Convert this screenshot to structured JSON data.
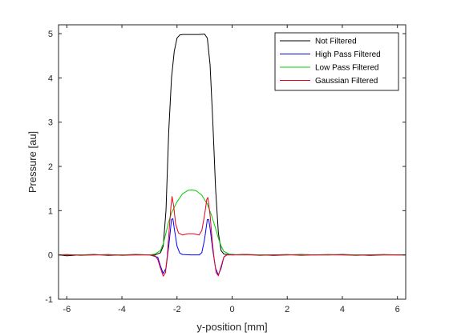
{
  "chart_data": {
    "type": "line",
    "title": "",
    "xlabel": "y-position [mm]",
    "ylabel": "Pressure [au]",
    "xlim": [
      -6.3,
      6.3
    ],
    "ylim": [
      -1,
      5.2
    ],
    "xticks": [
      -6,
      -4,
      -2,
      0,
      2,
      4,
      6
    ],
    "yticks": [
      -1,
      0,
      1,
      2,
      3,
      4,
      5
    ],
    "grid": false,
    "legend_position": "top-right",
    "series": [
      {
        "name": "Not Filtered",
        "color": "#000000",
        "points": [
          [
            -6.3,
            0
          ],
          [
            -6,
            -0.02
          ],
          [
            -5.5,
            0
          ],
          [
            -5,
            0.01
          ],
          [
            -4.5,
            -0.01
          ],
          [
            -4,
            0
          ],
          [
            -3.5,
            0.01
          ],
          [
            -3,
            0
          ],
          [
            -2.8,
            0
          ],
          [
            -2.6,
            0.05
          ],
          [
            -2.5,
            0.2
          ],
          [
            -2.4,
            1.0
          ],
          [
            -2.3,
            2.8
          ],
          [
            -2.2,
            4.0
          ],
          [
            -2.1,
            4.6
          ],
          [
            -2.0,
            4.9
          ],
          [
            -1.9,
            4.97
          ],
          [
            -1.8,
            4.98
          ],
          [
            -1.5,
            4.98
          ],
          [
            -1.2,
            4.98
          ],
          [
            -1.0,
            4.99
          ],
          [
            -0.9,
            4.9
          ],
          [
            -0.8,
            4.3
          ],
          [
            -0.7,
            3.0
          ],
          [
            -0.6,
            1.5
          ],
          [
            -0.5,
            0.5
          ],
          [
            -0.4,
            0.1
          ],
          [
            -0.3,
            0.02
          ],
          [
            0,
            0
          ],
          [
            0.5,
            0.01
          ],
          [
            1,
            0
          ],
          [
            1.5,
            -0.01
          ],
          [
            2,
            0
          ],
          [
            2.5,
            0.01
          ],
          [
            3,
            0
          ],
          [
            3.5,
            0
          ],
          [
            4,
            0.01
          ],
          [
            4.5,
            0
          ],
          [
            5,
            -0.01
          ],
          [
            5.5,
            0
          ],
          [
            6,
            0
          ],
          [
            6.3,
            0
          ]
        ]
      },
      {
        "name": "High Pass Filtered",
        "color": "#0000ff",
        "points": [
          [
            -6.3,
            0
          ],
          [
            -5.5,
            0
          ],
          [
            -4.5,
            0
          ],
          [
            -3.5,
            0
          ],
          [
            -3,
            0
          ],
          [
            -2.7,
            -0.05
          ],
          [
            -2.6,
            -0.25
          ],
          [
            -2.5,
            -0.42
          ],
          [
            -2.4,
            -0.3
          ],
          [
            -2.3,
            0.2
          ],
          [
            -2.2,
            0.8
          ],
          [
            -2.15,
            0.82
          ],
          [
            -2.1,
            0.6
          ],
          [
            -2.0,
            0.2
          ],
          [
            -1.9,
            0.04
          ],
          [
            -1.8,
            0.01
          ],
          [
            -1.5,
            0
          ],
          [
            -1.2,
            0
          ],
          [
            -1.1,
            0.05
          ],
          [
            -1.0,
            0.35
          ],
          [
            -0.9,
            0.8
          ],
          [
            -0.85,
            0.8
          ],
          [
            -0.8,
            0.6
          ],
          [
            -0.7,
            0.1
          ],
          [
            -0.6,
            -0.3
          ],
          [
            -0.5,
            -0.45
          ],
          [
            -0.4,
            -0.3
          ],
          [
            -0.3,
            -0.05
          ],
          [
            -0.2,
            0
          ],
          [
            0.5,
            0
          ],
          [
            1.5,
            0
          ],
          [
            2.5,
            0
          ],
          [
            3.5,
            0
          ],
          [
            4.5,
            0
          ],
          [
            5.5,
            0
          ],
          [
            6.3,
            0
          ]
        ]
      },
      {
        "name": "Low Pass Filtered",
        "color": "#00cc00",
        "points": [
          [
            -6.3,
            0
          ],
          [
            -5.5,
            0
          ],
          [
            -4.5,
            0
          ],
          [
            -3.5,
            0
          ],
          [
            -3,
            0
          ],
          [
            -2.8,
            0.02
          ],
          [
            -2.6,
            0.1
          ],
          [
            -2.5,
            0.25
          ],
          [
            -2.4,
            0.5
          ],
          [
            -2.3,
            0.75
          ],
          [
            -2.2,
            0.95
          ],
          [
            -2.0,
            1.2
          ],
          [
            -1.8,
            1.38
          ],
          [
            -1.6,
            1.46
          ],
          [
            -1.45,
            1.47
          ],
          [
            -1.3,
            1.45
          ],
          [
            -1.1,
            1.35
          ],
          [
            -0.9,
            1.15
          ],
          [
            -0.75,
            0.9
          ],
          [
            -0.6,
            0.6
          ],
          [
            -0.5,
            0.38
          ],
          [
            -0.4,
            0.2
          ],
          [
            -0.3,
            0.08
          ],
          [
            -0.1,
            0.02
          ],
          [
            0.2,
            0
          ],
          [
            1,
            0
          ],
          [
            2,
            0
          ],
          [
            3,
            0
          ],
          [
            4,
            0
          ],
          [
            5,
            0
          ],
          [
            6.3,
            0
          ]
        ]
      },
      {
        "name": "Gaussian Filtered",
        "color": "#e8001c",
        "points": [
          [
            -6.3,
            0
          ],
          [
            -6,
            0.01
          ],
          [
            -5.5,
            -0.01
          ],
          [
            -5,
            0
          ],
          [
            -4.5,
            0.01
          ],
          [
            -4,
            -0.01
          ],
          [
            -3.5,
            0
          ],
          [
            -3,
            0
          ],
          [
            -2.8,
            -0.02
          ],
          [
            -2.7,
            -0.1
          ],
          [
            -2.6,
            -0.3
          ],
          [
            -2.5,
            -0.48
          ],
          [
            -2.42,
            -0.4
          ],
          [
            -2.35,
            0
          ],
          [
            -2.28,
            0.6
          ],
          [
            -2.22,
            1.1
          ],
          [
            -2.18,
            1.32
          ],
          [
            -2.12,
            1.1
          ],
          [
            -2.05,
            0.7
          ],
          [
            -1.95,
            0.5
          ],
          [
            -1.8,
            0.45
          ],
          [
            -1.6,
            0.48
          ],
          [
            -1.4,
            0.48
          ],
          [
            -1.2,
            0.45
          ],
          [
            -1.1,
            0.55
          ],
          [
            -1.0,
            0.9
          ],
          [
            -0.92,
            1.25
          ],
          [
            -0.88,
            1.3
          ],
          [
            -0.8,
            0.9
          ],
          [
            -0.72,
            0.3
          ],
          [
            -0.65,
            -0.1
          ],
          [
            -0.58,
            -0.4
          ],
          [
            -0.5,
            -0.47
          ],
          [
            -0.42,
            -0.3
          ],
          [
            -0.3,
            -0.05
          ],
          [
            -0.2,
            0
          ],
          [
            0.5,
            0.01
          ],
          [
            1,
            -0.01
          ],
          [
            1.5,
            0
          ],
          [
            2,
            0.01
          ],
          [
            2.5,
            -0.01
          ],
          [
            3,
            0
          ],
          [
            3.5,
            0.01
          ],
          [
            4,
            0
          ],
          [
            4.5,
            -0.01
          ],
          [
            5,
            0
          ],
          [
            5.5,
            0.01
          ],
          [
            6,
            0
          ],
          [
            6.3,
            0
          ]
        ]
      }
    ]
  }
}
